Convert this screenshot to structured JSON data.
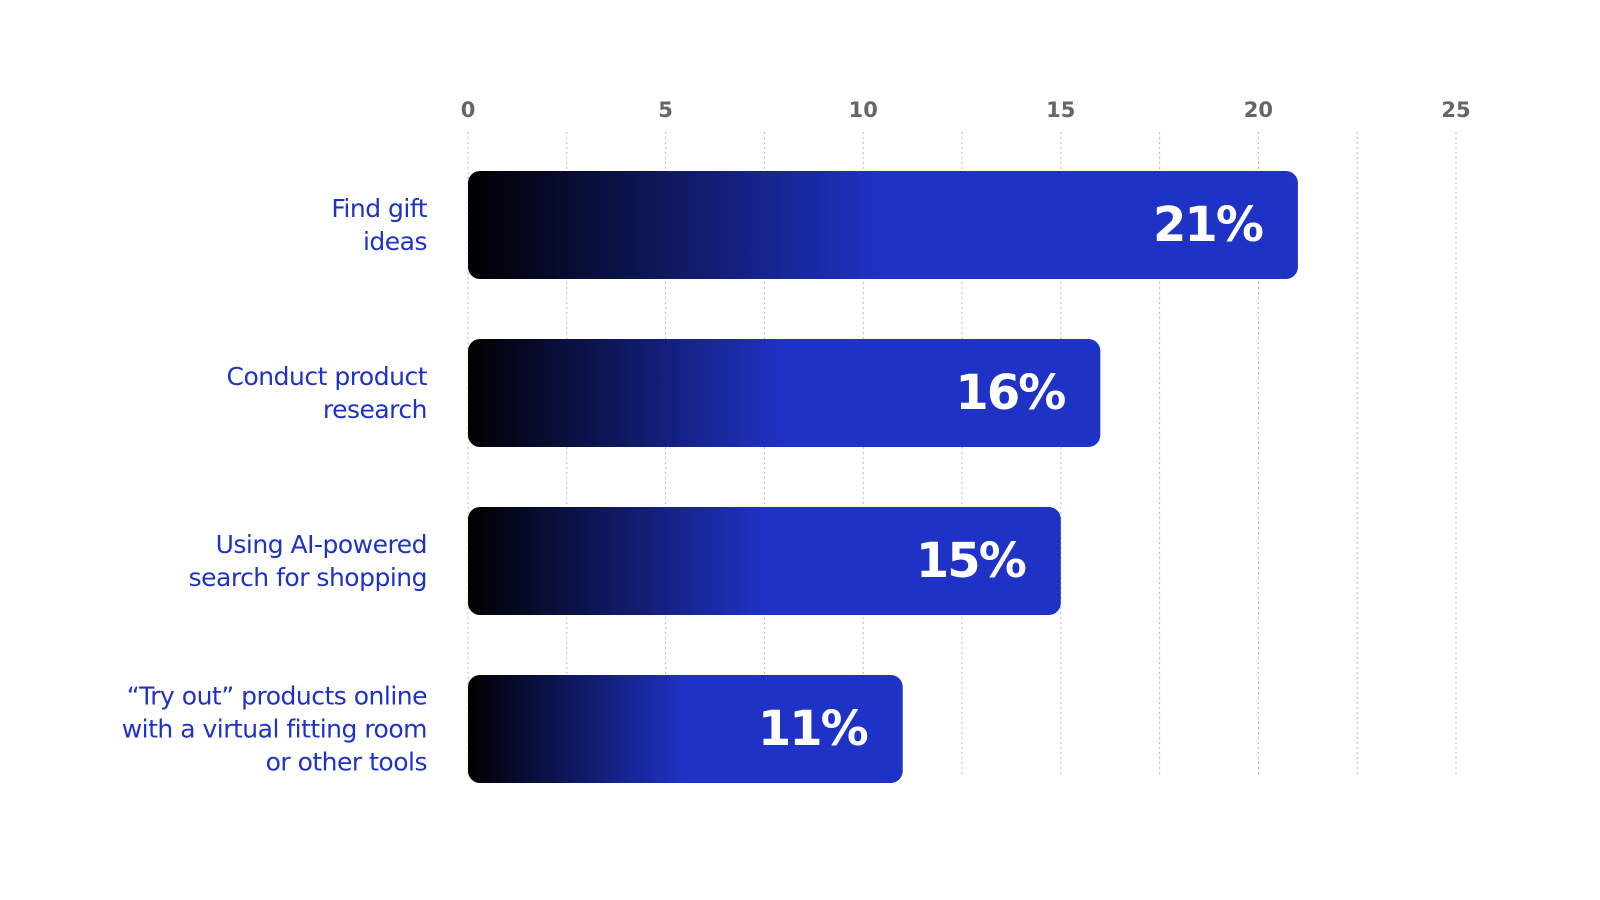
{
  "chart_data": {
    "type": "barh",
    "categories": [
      "Find gift\nideas",
      "Conduct product\nresearch",
      "Using AI-powered\nsearch for shopping",
      "“Try out” products online\nwith a virtual fitting room\nor other tools"
    ],
    "values": [
      21,
      16,
      15,
      11
    ],
    "value_labels": [
      "21%",
      "16%",
      "15%",
      "11%"
    ],
    "color": "#1f32c6",
    "xlim": [
      0,
      25
    ],
    "xticks": [
      0,
      5,
      10,
      15,
      20,
      25
    ],
    "grid": true,
    "minor_grid": true
  }
}
